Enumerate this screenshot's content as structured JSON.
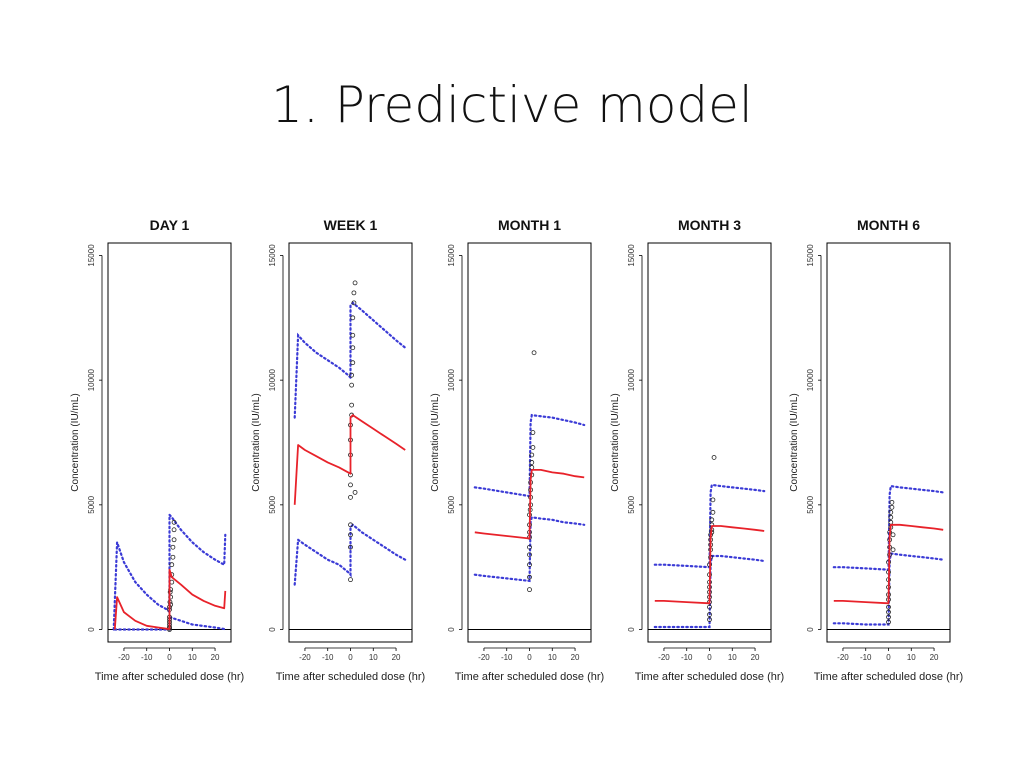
{
  "slide_title": "1. Predictive model",
  "colors": {
    "median": "#e8222a",
    "interval": "#3b3bd6",
    "observed": "#222222",
    "axis": "#000000"
  },
  "chart_data": [
    {
      "type": "line",
      "title": "DAY 1",
      "xlabel": "Time after scheduled dose (hr)",
      "ylabel": "Concentration (IU/mL)",
      "xlim": [
        -27,
        27
      ],
      "ylim": [
        -500,
        15500
      ],
      "xticks": [
        -20,
        -10,
        0,
        10,
        20
      ],
      "yticks": [
        0,
        5000,
        10000,
        15000
      ],
      "legend": "none",
      "series": [
        {
          "role": "median",
          "x": [
            -24,
            -23,
            -20,
            -15,
            -10,
            -5,
            -1,
            0,
            0.01,
            1,
            5,
            10,
            15,
            20,
            24,
            24.5
          ],
          "y": [
            0,
            1300,
            700,
            350,
            150,
            80,
            30,
            20,
            2400,
            2100,
            1800,
            1400,
            1150,
            950,
            850,
            1550
          ]
        },
        {
          "role": "upper",
          "x": [
            -24.5,
            -23,
            -20,
            -15,
            -10,
            -5,
            -1,
            0,
            0.01,
            1,
            5,
            10,
            15,
            20,
            24,
            24.5
          ],
          "y": [
            0,
            3500,
            2700,
            1900,
            1400,
            1000,
            800,
            700,
            4600,
            4500,
            4000,
            3500,
            3100,
            2800,
            2600,
            3800
          ]
        },
        {
          "role": "lower",
          "x": [
            -24,
            -20,
            -10,
            0,
            0.01,
            5,
            10,
            20,
            24
          ],
          "y": [
            0,
            0,
            0,
            0,
            500,
            350,
            200,
            80,
            20
          ]
        }
      ],
      "observed": {
        "x": [
          0,
          0,
          0,
          0,
          0,
          0,
          0,
          0,
          0.5,
          0.5,
          0.5,
          1,
          1,
          1,
          1.5,
          1.5,
          2,
          2,
          2,
          0,
          0.2,
          0.3
        ],
        "y": [
          0,
          50,
          100,
          200,
          300,
          400,
          500,
          800,
          1000,
          1300,
          1600,
          1900,
          2200,
          2600,
          2900,
          3300,
          3600,
          4000,
          4300,
          900,
          1100,
          1500
        ]
      }
    },
    {
      "type": "line",
      "title": "WEEK 1",
      "xlabel": "Time after scheduled dose (hr)",
      "ylabel": "Concentration (IU/mL)",
      "xlim": [
        -27,
        27
      ],
      "ylim": [
        -500,
        15500
      ],
      "xticks": [
        -20,
        -10,
        0,
        10,
        20
      ],
      "yticks": [
        0,
        5000,
        10000,
        15000
      ],
      "legend": "none",
      "series": [
        {
          "role": "median",
          "x": [
            -24.5,
            -23,
            -20,
            -15,
            -10,
            -5,
            -1,
            0,
            0.01,
            1,
            5,
            10,
            15,
            20,
            24
          ],
          "y": [
            5000,
            7400,
            7200,
            6950,
            6700,
            6500,
            6300,
            6250,
            8500,
            8600,
            8350,
            8050,
            7750,
            7450,
            7200
          ]
        },
        {
          "role": "upper",
          "x": [
            -24.5,
            -23,
            -20,
            -15,
            -10,
            -5,
            -1,
            0,
            0.01,
            1,
            5,
            10,
            15,
            20,
            24
          ],
          "y": [
            8500,
            11800,
            11500,
            11100,
            10800,
            10500,
            10200,
            10100,
            13000,
            13100,
            12800,
            12400,
            12000,
            11600,
            11300
          ]
        },
        {
          "role": "lower",
          "x": [
            -24.5,
            -23,
            -20,
            -15,
            -10,
            -5,
            -1,
            0,
            0.01,
            1,
            5,
            10,
            15,
            20,
            24
          ],
          "y": [
            1800,
            3600,
            3400,
            3100,
            2800,
            2600,
            2300,
            2200,
            4100,
            4200,
            3900,
            3600,
            3300,
            3000,
            2800
          ]
        }
      ],
      "observed": {
        "x": [
          0,
          0,
          0,
          0,
          0,
          0,
          0,
          0,
          0,
          0,
          0.5,
          0.5,
          0.5,
          0.5,
          1,
          1,
          1,
          1,
          1.5,
          1.5,
          2,
          2
        ],
        "y": [
          2000,
          3300,
          3800,
          4200,
          5300,
          5800,
          6200,
          7000,
          7600,
          8200,
          8600,
          9000,
          9800,
          10200,
          10700,
          11300,
          11800,
          12500,
          13100,
          13500,
          13900,
          5500
        ]
      }
    },
    {
      "type": "line",
      "title": "MONTH 1",
      "xlabel": "Time after scheduled dose (hr)",
      "ylabel": "Concentration (IU/mL)",
      "xlim": [
        -27,
        27
      ],
      "ylim": [
        -500,
        15500
      ],
      "xticks": [
        -20,
        -10,
        0,
        10,
        20
      ],
      "yticks": [
        0,
        5000,
        10000,
        15000
      ],
      "legend": "none",
      "series": [
        {
          "role": "median",
          "x": [
            -24,
            -20,
            -10,
            0,
            0.5,
            1,
            5,
            10,
            15,
            20,
            24
          ],
          "y": [
            3900,
            3850,
            3750,
            3650,
            6000,
            6400,
            6400,
            6300,
            6250,
            6150,
            6100
          ]
        },
        {
          "role": "upper",
          "x": [
            -24,
            -20,
            -10,
            0,
            0.5,
            1,
            5,
            10,
            15,
            20,
            24
          ],
          "y": [
            5700,
            5650,
            5500,
            5350,
            8300,
            8600,
            8550,
            8500,
            8400,
            8300,
            8200
          ]
        },
        {
          "role": "lower",
          "x": [
            -24,
            -20,
            -10,
            0,
            0.5,
            1,
            5,
            10,
            15,
            20,
            24
          ],
          "y": [
            2200,
            2150,
            2050,
            1950,
            4300,
            4500,
            4450,
            4400,
            4300,
            4250,
            4200
          ]
        }
      ],
      "observed": {
        "x": [
          0,
          0,
          0,
          0,
          0,
          0,
          0,
          0,
          0.5,
          0.5,
          0.5,
          0.5,
          1,
          1,
          1,
          1,
          1.5,
          1.5,
          2,
          0,
          0.3
        ],
        "y": [
          1600,
          2600,
          3000,
          3300,
          3700,
          3900,
          4200,
          4600,
          5000,
          5300,
          5600,
          5900,
          6200,
          6500,
          6700,
          7000,
          7300,
          7900,
          11100,
          2100,
          4800
        ]
      }
    },
    {
      "type": "line",
      "title": "MONTH 3",
      "xlabel": "Time after scheduled dose (hr)",
      "ylabel": "Concentration (IU/mL)",
      "xlim": [
        -27,
        27
      ],
      "ylim": [
        -500,
        15500
      ],
      "xticks": [
        -20,
        -10,
        0,
        10,
        20
      ],
      "yticks": [
        0,
        5000,
        10000,
        15000
      ],
      "legend": "none",
      "series": [
        {
          "role": "median",
          "x": [
            -24,
            -20,
            -10,
            0,
            0.5,
            1,
            5,
            10,
            15,
            20,
            24
          ],
          "y": [
            1150,
            1150,
            1100,
            1050,
            3700,
            4150,
            4150,
            4100,
            4050,
            4000,
            3950
          ]
        },
        {
          "role": "upper",
          "x": [
            -24,
            -20,
            -10,
            0,
            0.5,
            1,
            5,
            10,
            15,
            20,
            24
          ],
          "y": [
            2600,
            2600,
            2550,
            2500,
            5500,
            5800,
            5750,
            5700,
            5650,
            5600,
            5550
          ]
        },
        {
          "role": "lower",
          "x": [
            -24,
            -20,
            -10,
            0,
            0.5,
            1,
            5,
            10,
            15,
            20,
            24
          ],
          "y": [
            100,
            100,
            100,
            100,
            2600,
            2950,
            2950,
            2900,
            2850,
            2800,
            2750
          ]
        }
      ],
      "observed": {
        "x": [
          0,
          0,
          0,
          0,
          0,
          0,
          0,
          0,
          0,
          0,
          0.5,
          0.5,
          0.5,
          0.5,
          0.5,
          1,
          1,
          1,
          1,
          1.5,
          1.5,
          2
        ],
        "y": [
          400,
          600,
          900,
          1100,
          1300,
          1500,
          1700,
          1900,
          2200,
          2600,
          2900,
          3200,
          3400,
          3600,
          3800,
          3900,
          4000,
          4200,
          4400,
          4700,
          5200,
          6900
        ]
      }
    },
    {
      "type": "line",
      "title": "MONTH 6",
      "xlabel": "Time after scheduled dose (hr)",
      "ylabel": "Concentration (IU/mL)",
      "xlim": [
        -27,
        27
      ],
      "ylim": [
        -500,
        15500
      ],
      "xticks": [
        -20,
        -10,
        0,
        10,
        20
      ],
      "yticks": [
        0,
        5000,
        10000,
        15000
      ],
      "legend": "none",
      "series": [
        {
          "role": "median",
          "x": [
            -24,
            -20,
            -10,
            0,
            0.5,
            1,
            5,
            10,
            15,
            20,
            24
          ],
          "y": [
            1150,
            1150,
            1100,
            1050,
            3700,
            4200,
            4200,
            4150,
            4100,
            4050,
            4000
          ]
        },
        {
          "role": "upper",
          "x": [
            -24,
            -20,
            -10,
            0,
            0.5,
            1,
            5,
            10,
            15,
            20,
            24
          ],
          "y": [
            2500,
            2500,
            2450,
            2400,
            5400,
            5750,
            5700,
            5650,
            5600,
            5550,
            5500
          ]
        },
        {
          "role": "lower",
          "x": [
            -24,
            -20,
            -10,
            0,
            0.5,
            1,
            5,
            10,
            15,
            20,
            24
          ],
          "y": [
            250,
            250,
            200,
            200,
            2700,
            3050,
            3000,
            2950,
            2900,
            2850,
            2800
          ]
        }
      ],
      "observed": {
        "x": [
          0,
          0,
          0,
          0,
          0,
          0,
          0,
          0,
          0,
          0,
          0.5,
          0.5,
          0.5,
          0.5,
          1,
          1,
          1,
          1,
          1.5,
          1.5,
          2,
          2
        ],
        "y": [
          300,
          500,
          700,
          900,
          1200,
          1400,
          1700,
          2000,
          2300,
          2700,
          3000,
          3300,
          3600,
          3900,
          4100,
          4300,
          4500,
          4700,
          4900,
          5100,
          3200,
          3800
        ]
      }
    }
  ]
}
